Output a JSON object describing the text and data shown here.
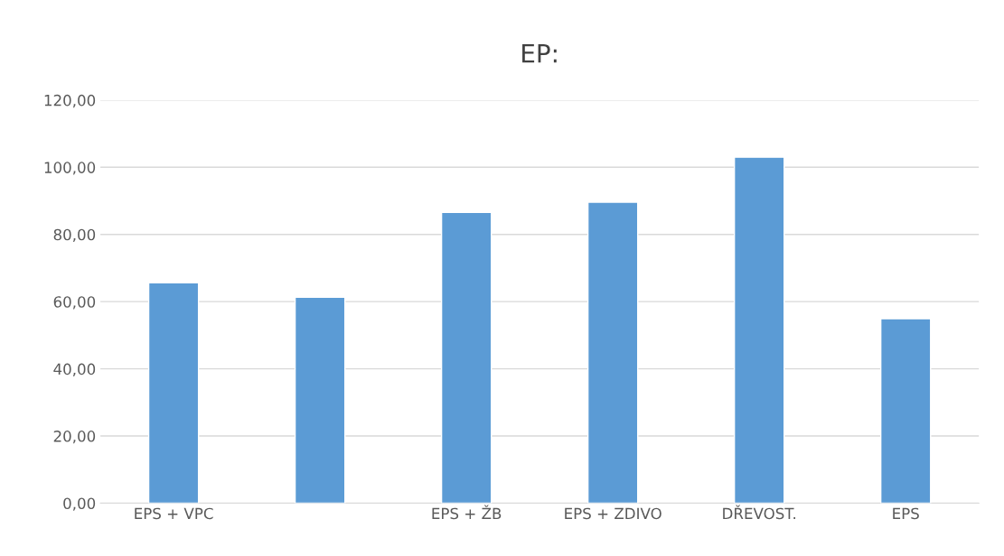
{
  "chart_data": {
    "type": "bar",
    "title": "EP:",
    "categories": [
      "EPS + VPC",
      null,
      "EPS + ŽB",
      "EPS + ZDIVO",
      "DŘEVOST.",
      "EPS"
    ],
    "values": [
      65.6,
      61.3,
      86.6,
      89.6,
      103.0,
      54.9
    ],
    "color": "#5b9bd5",
    "ylim": [
      0,
      120
    ],
    "yticks": [
      {
        "value": 0,
        "label": "0,00"
      },
      {
        "value": 20,
        "label": "20,00"
      },
      {
        "value": 40,
        "label": "40,00"
      },
      {
        "value": 60,
        "label": "60,00"
      },
      {
        "value": 80,
        "label": "80,00"
      },
      {
        "value": 100,
        "label": "100,00"
      },
      {
        "value": 120,
        "label": "120,00"
      }
    ],
    "grid": "y",
    "legend": false
  }
}
